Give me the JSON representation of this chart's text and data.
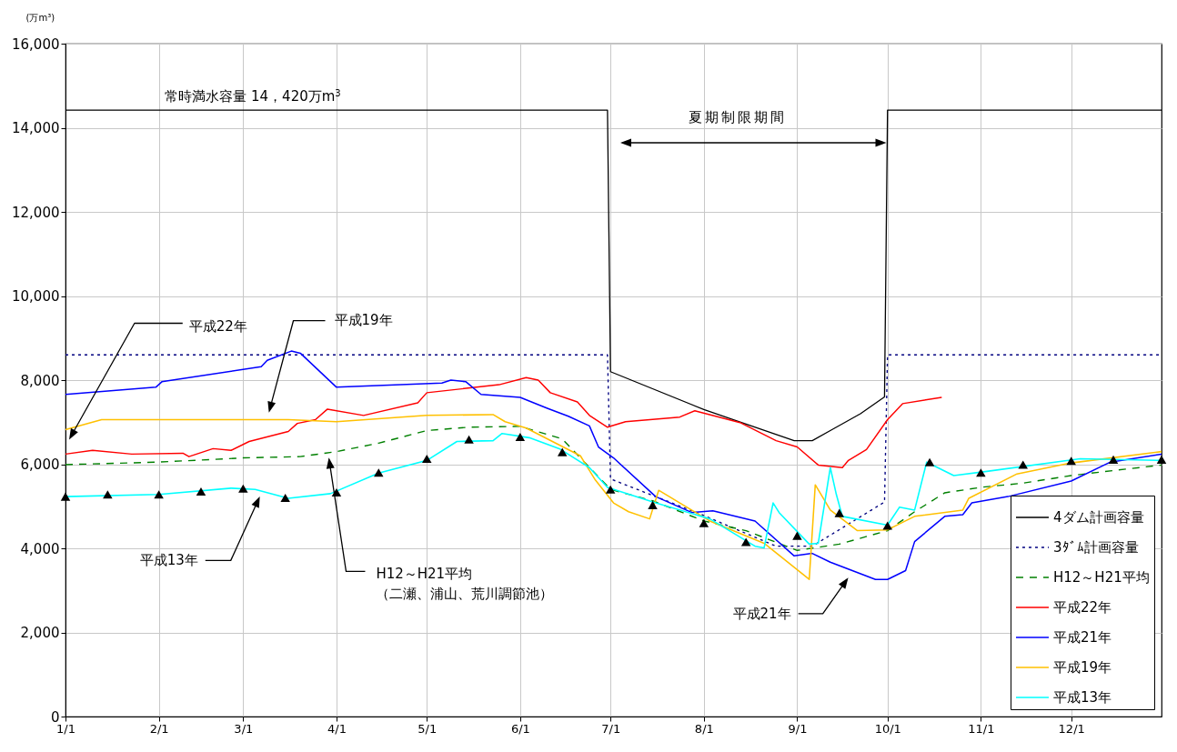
{
  "chart_data": {
    "type": "line",
    "ylabel": "(万m³)",
    "xlim": [
      "--01-01",
      "--12-31"
    ],
    "xticks": [
      {
        "value": "--01-01",
        "label": "1/1"
      },
      {
        "value": "--02-01",
        "label": "2/1"
      },
      {
        "value": "--03-01",
        "label": "3/1"
      },
      {
        "value": "--04-01",
        "label": "4/1"
      },
      {
        "value": "--05-01",
        "label": "5/1"
      },
      {
        "value": "--06-01",
        "label": "6/1"
      },
      {
        "value": "--07-01",
        "label": "7/1"
      },
      {
        "value": "--08-01",
        "label": "8/1"
      },
      {
        "value": "--09-01",
        "label": "9/1"
      },
      {
        "value": "--10-01",
        "label": "10/1"
      },
      {
        "value": "--11-01",
        "label": "11/1"
      },
      {
        "value": "--12-01",
        "label": "12/1"
      }
    ],
    "ylim": [
      0,
      16000
    ],
    "yticks": [
      {
        "value": 0,
        "label": "0"
      },
      {
        "value": 2000,
        "label": "2,000"
      },
      {
        "value": 4000,
        "label": "4,000"
      },
      {
        "value": 6000,
        "label": "6,000"
      },
      {
        "value": 8000,
        "label": "8,000"
      },
      {
        "value": 10000,
        "label": "10,000"
      },
      {
        "value": 12000,
        "label": "12,000"
      },
      {
        "value": 14000,
        "label": "14,000"
      },
      {
        "value": 16000,
        "label": "16,000"
      }
    ],
    "grid": true,
    "legend": "bottom right",
    "series": [
      {
        "name": "4ダム計画容量",
        "color": "#000000",
        "line_style": "solid",
        "x": [
          "--01-01",
          "--06-30",
          "--07-01",
          "--08-01",
          "--08-31",
          "--09-06",
          "--09-12",
          "--09-22",
          "--09-30",
          "--10-01",
          "--12-31"
        ],
        "values": [
          14420,
          14420,
          8200,
          7300,
          6560,
          6560,
          6800,
          7200,
          7600,
          14420,
          14420
        ]
      },
      {
        "name": "3ﾀﾞﾑ計画容量",
        "color": "#000080",
        "line_style": "dotted",
        "x": [
          "--01-01",
          "--06-30",
          "--07-01",
          "--08-01",
          "--08-25",
          "--09-06",
          "--09-30",
          "--10-01",
          "--12-31"
        ],
        "values": [
          8600,
          8600,
          5650,
          4780,
          4050,
          4050,
          5100,
          8600,
          8600
        ]
      },
      {
        "name": "H12～H21平均",
        "color": "#008000",
        "line_style": "dashed",
        "x": [
          "--01-01",
          "--02-01",
          "--03-01",
          "--03-20",
          "--04-01",
          "--04-15",
          "--05-01",
          "--05-15",
          "--06-01",
          "--06-15",
          "--07-01",
          "--07-15",
          "--08-01",
          "--08-15",
          "--09-01",
          "--09-15",
          "--10-01",
          "--10-10",
          "--10-20",
          "--11-01",
          "--11-15",
          "--12-01",
          "--12-15",
          "--12-31"
        ],
        "values": [
          5990,
          6050,
          6150,
          6180,
          6300,
          6500,
          6800,
          6880,
          6900,
          6600,
          5400,
          5130,
          4650,
          4420,
          3950,
          4100,
          4420,
          4870,
          5320,
          5450,
          5550,
          5730,
          5850,
          5980
        ]
      },
      {
        "name": "平成22年",
        "color": "#ff0000",
        "line_style": "solid",
        "x": [
          "--01-01",
          "--01-10",
          "--01-23",
          "--02-09",
          "--02-11",
          "--02-19",
          "--02-25",
          "--03-03",
          "--03-16",
          "--03-19",
          "--03-25",
          "--03-29",
          "--04-10",
          "--04-28",
          "--05-01",
          "--05-25",
          "--06-03",
          "--06-07",
          "--06-11",
          "--06-20",
          "--06-24",
          "--06-30",
          "--07-06",
          "--07-24",
          "--07-29",
          "--08-13",
          "--08-25",
          "--09-01",
          "--09-08",
          "--09-16",
          "--09-18",
          "--09-24",
          "--10-01",
          "--10-06",
          "--10-19"
        ],
        "values": [
          6240,
          6330,
          6240,
          6260,
          6180,
          6370,
          6330,
          6540,
          6780,
          6970,
          7060,
          7310,
          7160,
          7460,
          7700,
          7890,
          8060,
          8000,
          7700,
          7480,
          7160,
          6880,
          7010,
          7120,
          7270,
          6990,
          6560,
          6410,
          5980,
          5920,
          6090,
          6350,
          7060,
          7440,
          7590
        ]
      },
      {
        "name": "平成21年",
        "color": "#0000ff",
        "line_style": "solid",
        "x": [
          "--01-01",
          "--01-31",
          "--02-02",
          "--03-07",
          "--03-09",
          "--03-17",
          "--03-20",
          "--04-01",
          "--05-06",
          "--05-09",
          "--05-14",
          "--05-19",
          "--06-01",
          "--06-10",
          "--06-17",
          "--06-24",
          "--06-27",
          "--07-02",
          "--07-16",
          "--07-28",
          "--08-04",
          "--08-18",
          "--08-31",
          "--09-06",
          "--09-12",
          "--09-27",
          "--10-01",
          "--10-07",
          "--10-10",
          "--10-20",
          "--10-26",
          "--10-29",
          "--11-10",
          "--12-01",
          "--12-14",
          "--12-31"
        ],
        "values": [
          7660,
          7830,
          7960,
          8320,
          8470,
          8690,
          8640,
          7830,
          7930,
          8000,
          7960,
          7660,
          7590,
          7330,
          7140,
          6910,
          6410,
          6150,
          5230,
          4850,
          4890,
          4650,
          3820,
          3880,
          3670,
          3260,
          3260,
          3470,
          4160,
          4760,
          4800,
          5080,
          5230,
          5600,
          6050,
          6240
        ]
      },
      {
        "name": "平成19年",
        "color": "#ffc000",
        "line_style": "solid",
        "x": [
          "--01-01",
          "--01-13",
          "--03-16",
          "--04-01",
          "--05-01",
          "--05-23",
          "--05-27",
          "--06-03",
          "--06-21",
          "--06-26",
          "--07-02",
          "--07-07",
          "--07-14",
          "--07-17",
          "--08-03",
          "--08-21",
          "--09-05",
          "--09-07",
          "--09-12",
          "--09-21",
          "--10-01",
          "--10-10",
          "--10-26",
          "--10-28",
          "--11-13",
          "--12-01",
          "--12-31"
        ],
        "values": [
          6820,
          7060,
          7060,
          7010,
          7160,
          7180,
          7010,
          6860,
          6200,
          5620,
          5080,
          4870,
          4700,
          5380,
          4650,
          4120,
          3260,
          5510,
          4910,
          4420,
          4440,
          4760,
          4910,
          5190,
          5770,
          6030,
          6300
        ]
      },
      {
        "name": "平成13年",
        "color": "#00ffff",
        "line_style": "solid",
        "x": [
          "--01-01",
          "--02-01",
          "--02-25",
          "--03-05",
          "--03-16",
          "--03-30",
          "--04-15",
          "--05-01",
          "--05-11",
          "--05-23",
          "--05-26",
          "--06-04",
          "--06-14",
          "--06-24",
          "--06-30",
          "--07-16",
          "--08-03",
          "--08-18",
          "--08-21",
          "--08-24",
          "--08-26",
          "--09-05",
          "--09-08",
          "--09-12",
          "--09-14",
          "--09-16",
          "--10-01",
          "--10-05",
          "--10-10",
          "--10-14",
          "--10-23",
          "--11-03",
          "--12-04",
          "--12-31"
        ],
        "values": [
          5230,
          5280,
          5430,
          5400,
          5190,
          5300,
          5790,
          6090,
          6540,
          6560,
          6730,
          6630,
          6370,
          5920,
          5450,
          5080,
          4700,
          4050,
          4010,
          5080,
          4850,
          4100,
          4120,
          5920,
          5280,
          4760,
          4550,
          4980,
          4910,
          6050,
          5730,
          5830,
          6130,
          6090
        ]
      },
      {
        "type": "scatter",
        "marker": "triangle",
        "color": "#000000",
        "x": [
          "--01-01",
          "--01-15",
          "--02-01",
          "--02-15",
          "--03-01",
          "--03-15",
          "--04-01",
          "--04-15",
          "--05-01",
          "--05-15",
          "--06-01",
          "--06-15",
          "--07-01",
          "--07-15",
          "--08-01",
          "--08-15",
          "--09-01",
          "--09-15",
          "--10-01",
          "--10-15",
          "--11-01",
          "--11-15",
          "--12-01",
          "--12-15",
          "--12-31"
        ],
        "values": [
          5230,
          5280,
          5280,
          5350,
          5420,
          5200,
          5330,
          5800,
          6130,
          6590,
          6650,
          6290,
          5400,
          5030,
          4600,
          4150,
          4300,
          4840,
          4540,
          6050,
          5800,
          5990,
          6080,
          6110,
          6110
        ]
      }
    ],
    "annotations": [
      {
        "text": "常時満水容量 14，420万m$^{3}$",
        "x": "--02-03",
        "y": 14420
      },
      "平成22年",
      "平成19年",
      "平成13年",
      "H12～H21平均（二瀬、浦山、荒川調節池）",
      "平成21年",
      "夏期制限期間"
    ]
  }
}
